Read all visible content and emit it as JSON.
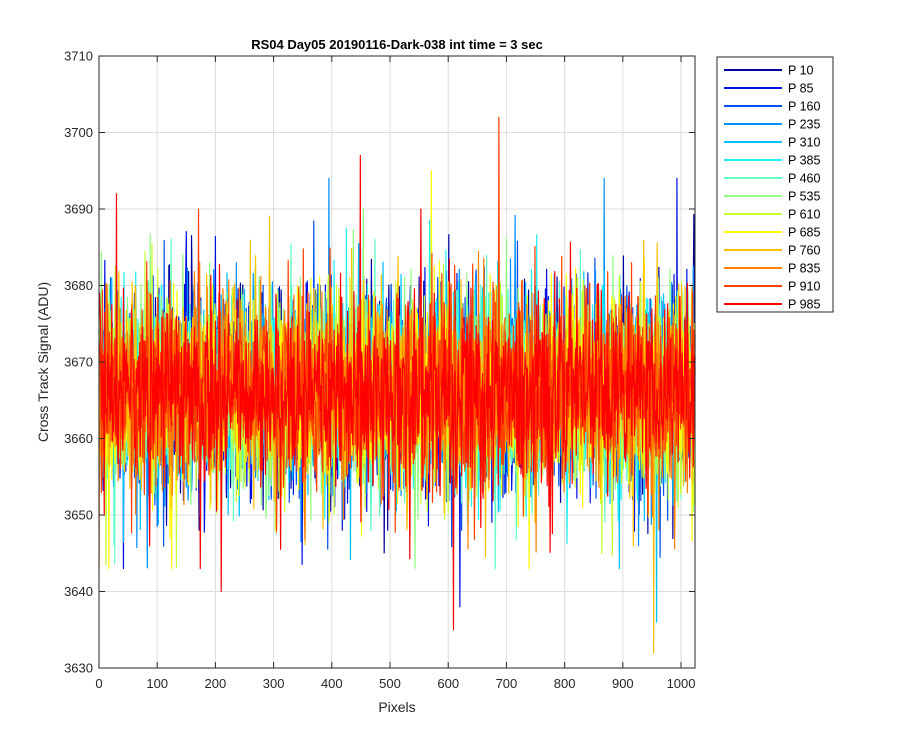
{
  "chart_data": {
    "type": "line",
    "title": "RS04 Day05 20190116-Dark-038 int time = 3 sec",
    "xlabel": "Pixels",
    "ylabel": "Cross Track Signal (ADU)",
    "xlim": [
      0,
      1024
    ],
    "ylim": [
      3630,
      3710
    ],
    "xticks": [
      0,
      100,
      200,
      300,
      400,
      500,
      600,
      700,
      800,
      900,
      1000
    ],
    "yticks": [
      3630,
      3640,
      3650,
      3660,
      3670,
      3680,
      3690,
      3700,
      3710
    ],
    "grid": true,
    "legend_position": "outside-right",
    "series_mean_approx": 3666,
    "series": [
      {
        "name": "P 10",
        "color": "#00009f"
      },
      {
        "name": "P 85",
        "color": "#0010e0"
      },
      {
        "name": "P 160",
        "color": "#0050f0"
      },
      {
        "name": "P 235",
        "color": "#0090ff"
      },
      {
        "name": "P 310",
        "color": "#00c0ff"
      },
      {
        "name": "P 385",
        "color": "#20f0f0"
      },
      {
        "name": "P 460",
        "color": "#60ffc0"
      },
      {
        "name": "P 535",
        "color": "#90ff80"
      },
      {
        "name": "P 610",
        "color": "#c8ff30"
      },
      {
        "name": "P 685",
        "color": "#ffff00"
      },
      {
        "name": "P 760",
        "color": "#ffc000"
      },
      {
        "name": "P 835",
        "color": "#ff8000"
      },
      {
        "name": "P 910",
        "color": "#ff4000"
      },
      {
        "name": "P 985",
        "color": "#ff0000"
      }
    ],
    "notable_points": [
      {
        "x": 687,
        "y": 3702,
        "series": "P 910"
      },
      {
        "x": 449,
        "y": 3697,
        "series": "P 985"
      },
      {
        "x": 609,
        "y": 3635,
        "series": "P 985"
      },
      {
        "x": 953,
        "y": 3632,
        "series": "P 760"
      },
      {
        "x": 958,
        "y": 3636,
        "series": "P 310"
      },
      {
        "x": 620,
        "y": 3638,
        "series": "P 85"
      },
      {
        "x": 210,
        "y": 3640,
        "series": "P 985"
      },
      {
        "x": 30,
        "y": 3692,
        "series": "P 985"
      },
      {
        "x": 395,
        "y": 3694,
        "series": "P 235"
      },
      {
        "x": 868,
        "y": 3694,
        "series": "P 235"
      },
      {
        "x": 993,
        "y": 3694,
        "series": "P 85"
      },
      {
        "x": 571,
        "y": 3695,
        "series": "P 685"
      }
    ]
  }
}
